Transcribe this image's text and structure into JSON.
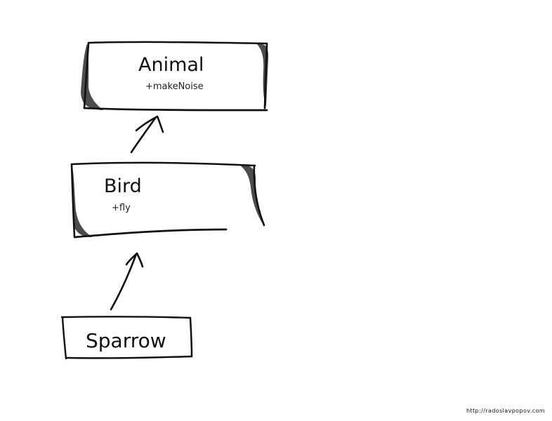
{
  "diagram": {
    "type": "UML class inheritance",
    "style": "hand-drawn sketch",
    "colors": {
      "background": "#ffffff",
      "ink": "#111111"
    },
    "classes": [
      {
        "id": "animal",
        "name": "Animal",
        "members": [
          "+makeNoise"
        ]
      },
      {
        "id": "bird",
        "name": "Bird",
        "members": [
          "+fly"
        ]
      },
      {
        "id": "sparrow",
        "name": "Sparrow",
        "members": []
      }
    ],
    "relations": [
      {
        "from": "bird",
        "to": "animal",
        "kind": "inheritance-arrow"
      },
      {
        "from": "sparrow",
        "to": "bird",
        "kind": "inheritance-arrow"
      }
    ],
    "footer": {
      "credit": "http://radoslavpopov.com"
    }
  }
}
